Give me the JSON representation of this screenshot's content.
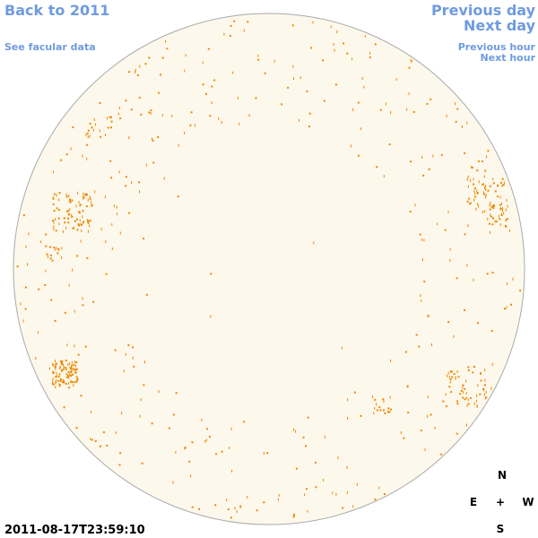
{
  "header": {
    "back_link": "Back to 2011",
    "data_link": "See facular data",
    "previous_day": "Previous day",
    "next_day": "Next day",
    "previous_hour": "Previous hour",
    "next_hour": "Next hour"
  },
  "timestamp": "2011-08-17T23:59:10",
  "compass": {
    "north": "N",
    "east": "E",
    "center": "+",
    "west": "W",
    "south": "S"
  }
}
